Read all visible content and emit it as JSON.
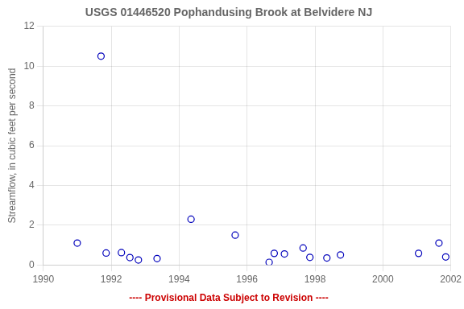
{
  "chart_data": {
    "type": "scatter",
    "title": "USGS 01446520 Pophandusing Brook at Belvidere NJ",
    "ylabel": "Streamflow, in cubic feet per second",
    "x": [
      1991.0,
      1991.7,
      1991.85,
      1992.3,
      1992.55,
      1992.8,
      1993.35,
      1994.35,
      1995.65,
      1996.65,
      1996.8,
      1997.1,
      1997.65,
      1997.85,
      1998.35,
      1998.75,
      2001.05,
      2001.65,
      2001.85
    ],
    "values": [
      1.1,
      10.5,
      0.6,
      0.62,
      0.37,
      0.25,
      0.32,
      2.3,
      1.5,
      0.13,
      0.58,
      0.55,
      0.85,
      0.38,
      0.35,
      0.5,
      0.58,
      1.1,
      0.4
    ],
    "color": "#0000bb",
    "marker": "circle",
    "xlim": [
      1990,
      2002
    ],
    "ylim": [
      0,
      12
    ],
    "xticks": [
      1990,
      1992,
      1994,
      1996,
      1998,
      2000,
      2002
    ],
    "yticks": [
      0,
      2,
      4,
      6,
      8,
      10,
      12
    ],
    "grid": true,
    "annotations": [
      {
        "text": "---- Provisional Data Subject to Revision ----",
        "color": "#cc0000"
      }
    ]
  }
}
